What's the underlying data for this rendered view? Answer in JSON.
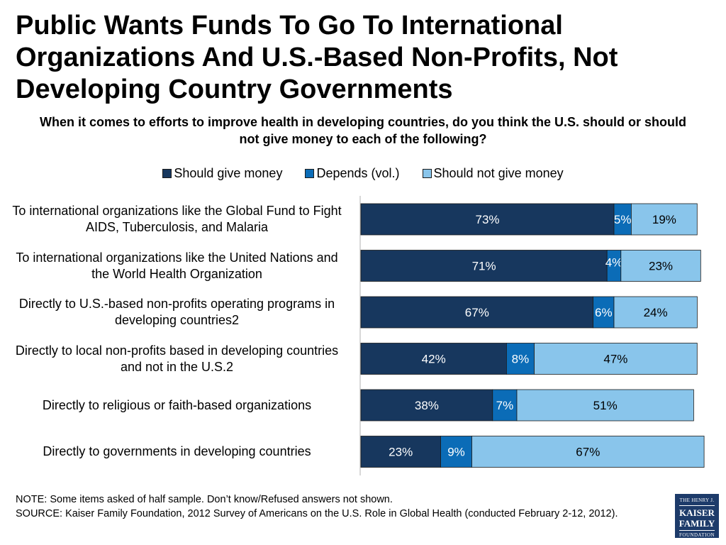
{
  "title": "Public Wants Funds To Go To International Organizations And U.S.-Based Non-Profits, Not Developing Country Governments",
  "subtitle": "When it comes to efforts to improve health in developing countries, do you think the U.S. should or should not give money to each of the following?",
  "footer": {
    "note": "NOTE: Some items asked of half sample. Don’t know/Refused answers not shown.",
    "source": "SOURCE: Kaiser Family Foundation, 2012 Survey of Americans on the U.S. Role in Global Health (conducted February 2-12, 2012)."
  },
  "logo": {
    "line1": "THE HENRY J.",
    "line2": "KAISER",
    "line3": "FAMILY",
    "line4": "FOUNDATION"
  },
  "chart_data": {
    "type": "bar",
    "orientation": "horizontal",
    "stacked": true,
    "xlim": [
      0,
      100
    ],
    "unit": "%",
    "legend_position": "top",
    "categories": [
      "To international organizations like the Global Fund to Fight AIDS, Tuberculosis, and Malaria",
      "To international organizations like the United Nations and the World Health Organization",
      "Directly to U.S.-based non-profits operating programs in developing countries2",
      "Directly to local non-profits based in developing countries and not in the U.S.2",
      "Directly to religious or faith-based organizations",
      "Directly to governments in developing countries"
    ],
    "series": [
      {
        "name": "Should give money",
        "color": "#17375e",
        "label_color": "#ffffff",
        "values": [
          73,
          71,
          67,
          42,
          38,
          23
        ]
      },
      {
        "name": "Depends (vol.)",
        "color": "#0b6cb7",
        "label_color": "#ffffff",
        "values": [
          5,
          4,
          6,
          8,
          7,
          9
        ]
      },
      {
        "name": "Should not give money",
        "color": "#89c5eb",
        "label_color": "#000000",
        "values": [
          19,
          23,
          24,
          47,
          51,
          67
        ]
      }
    ]
  }
}
